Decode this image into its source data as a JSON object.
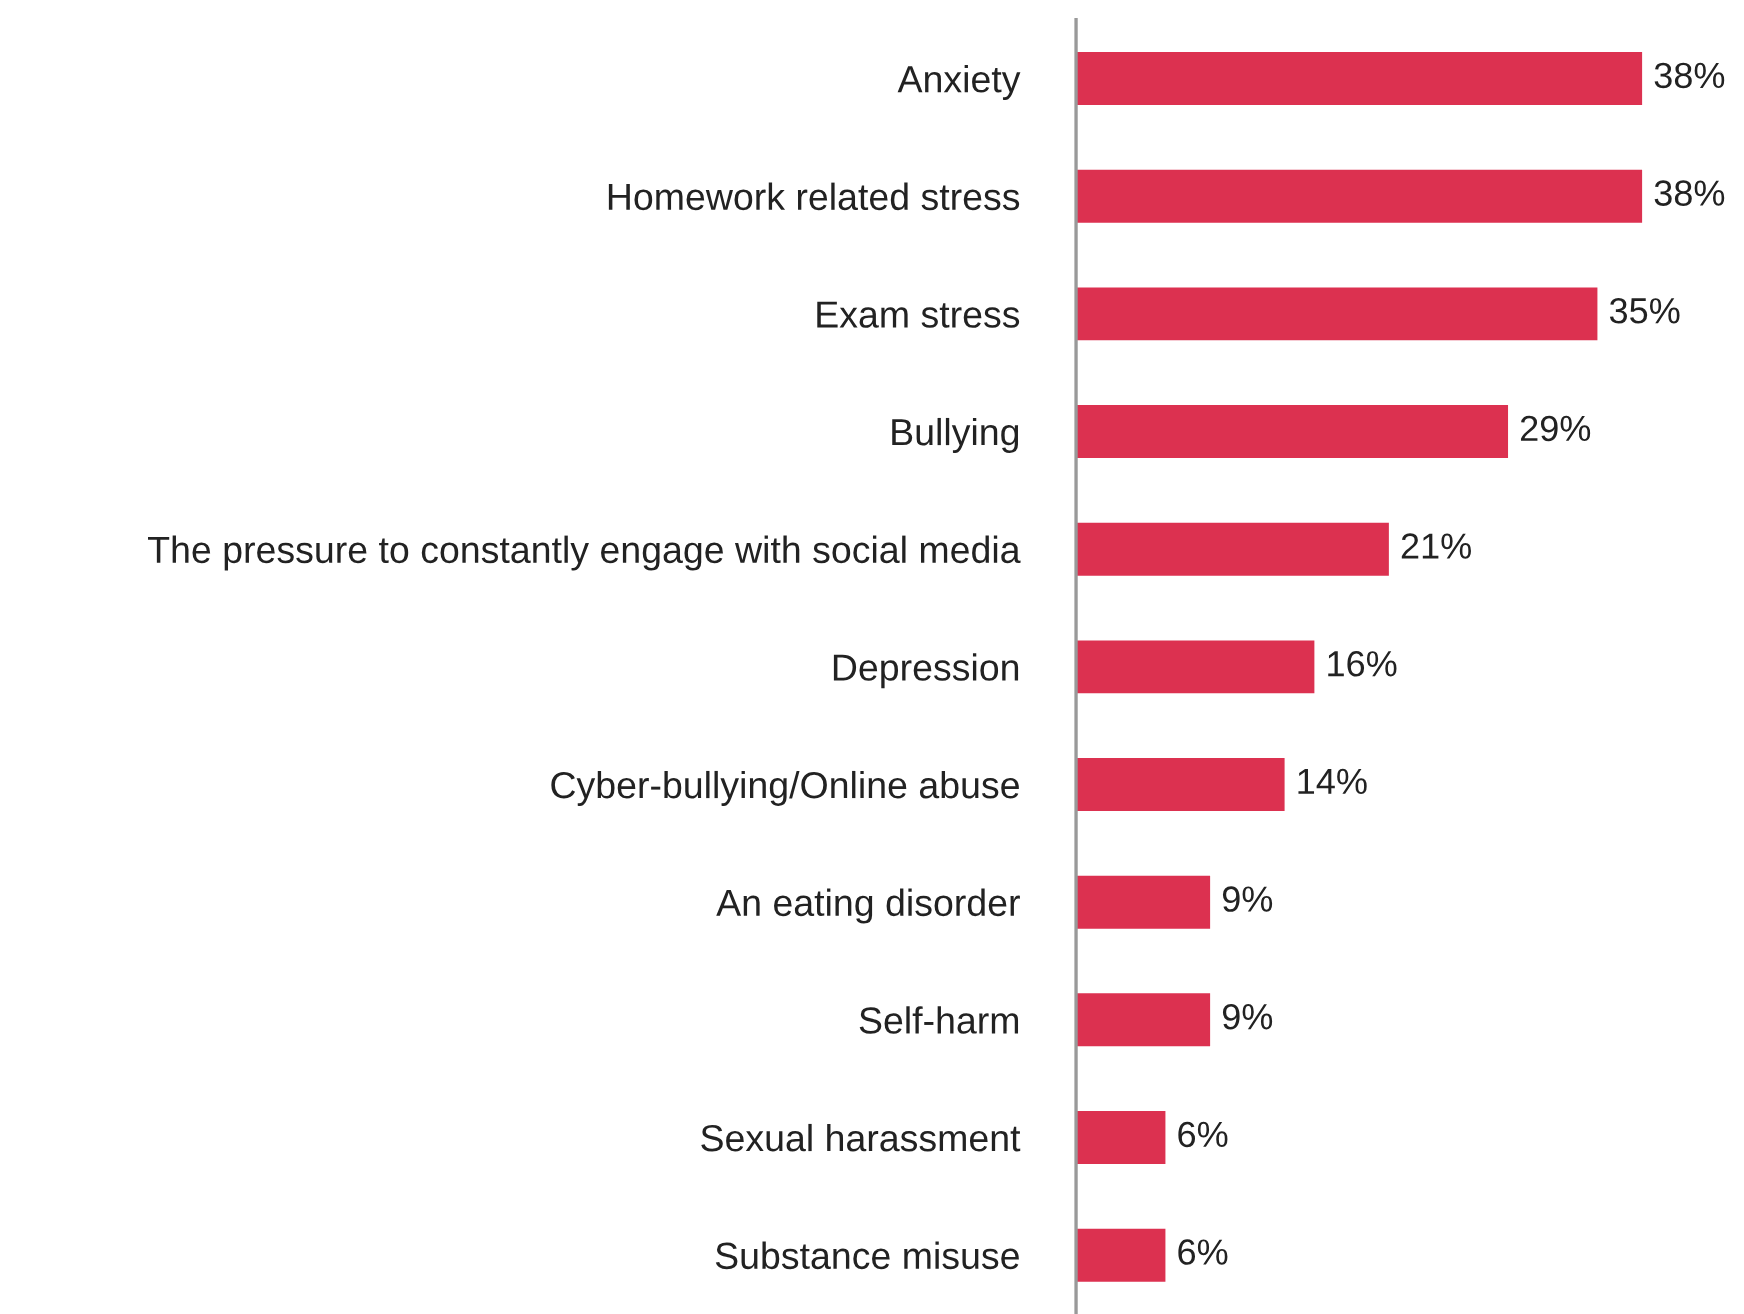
{
  "chart_data": {
    "type": "bar",
    "orientation": "horizontal",
    "categories": [
      "Anxiety",
      "Homework related stress",
      "Exam stress",
      "Bullying",
      "The pressure to constantly engage with social media",
      "Depression",
      "Cyber-bullying/Online abuse",
      "An eating disorder",
      "Self-harm",
      "Sexual harassment",
      "Substance misuse"
    ],
    "values": [
      38,
      38,
      35,
      29,
      21,
      16,
      14,
      9,
      9,
      6,
      6
    ],
    "value_labels": [
      "38%",
      "38%",
      "35%",
      "29%",
      "21%",
      "16%",
      "14%",
      "9%",
      "9%",
      "6%",
      "6%"
    ],
    "color": "#dc3150",
    "grid": false,
    "legend": false,
    "tick_labels": "y"
  }
}
